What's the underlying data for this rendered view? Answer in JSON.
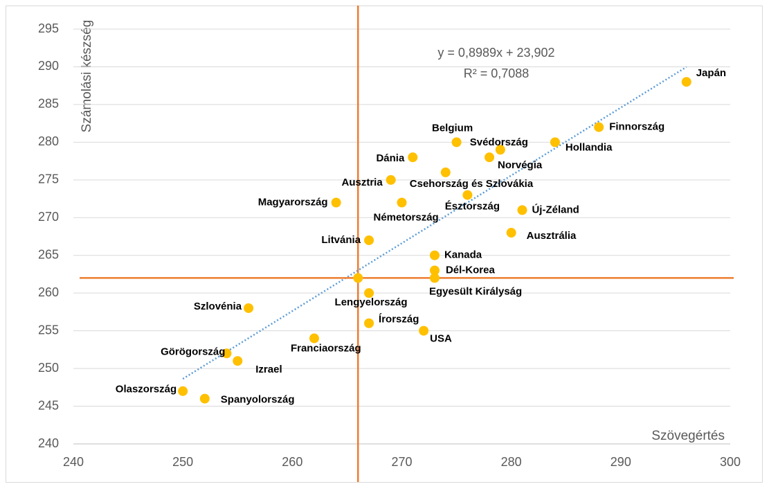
{
  "chart_data": {
    "type": "scatter",
    "x_label": "Szövegértés",
    "y_label": "Számolási készség",
    "labels": [
      "Japán",
      "Finnország",
      "Hollandia",
      "Svédország",
      "Norvégia",
      "Belgium",
      "Dánia",
      "Csehország és Szlovákia",
      "Ausztria",
      "Észtország",
      "Magyarország",
      "Németország",
      "Új-Zéland",
      "Ausztrália",
      "Litvánia",
      "Kanada",
      "Dél-Korea",
      "Egyesült Királyság",
      "Lengyelország",
      "Szlovénia",
      "Írország",
      "USA",
      "Franciaország",
      "Görögország",
      "Izrael",
      "Olaszország",
      "Spanyolország",
      null
    ],
    "x": [
      296,
      288,
      284,
      279,
      278,
      275,
      271,
      274,
      269,
      276,
      264,
      270,
      281,
      280,
      267,
      273,
      273,
      273,
      267,
      256,
      267,
      272,
      262,
      254,
      255,
      250,
      252,
      266
    ],
    "y": [
      288,
      282,
      280,
      279,
      278,
      280,
      278,
      276,
      275,
      273,
      272,
      272,
      271,
      268,
      267,
      265,
      263,
      262,
      260,
      258,
      256,
      255,
      254,
      252,
      251,
      247,
      246,
      262
    ],
    "color": "#ffc000",
    "xlim": [
      240,
      300
    ],
    "ylim": [
      240,
      295
    ],
    "xticks": [
      240,
      250,
      260,
      270,
      280,
      290,
      300
    ],
    "yticks": [
      240,
      245,
      250,
      255,
      260,
      265,
      270,
      275,
      280,
      285,
      290,
      295
    ],
    "grid": true,
    "vlines": [
      266
    ],
    "hlines": [
      262
    ],
    "ref_color": "#ed7d31",
    "trendline": {
      "equation": "y = 0,8989x + 23,902",
      "r2": "R² = 0,7088",
      "slope": 0.8989,
      "intercept": 23.902,
      "x_range": [
        250,
        296
      ],
      "color": "#5b9bd5"
    }
  }
}
